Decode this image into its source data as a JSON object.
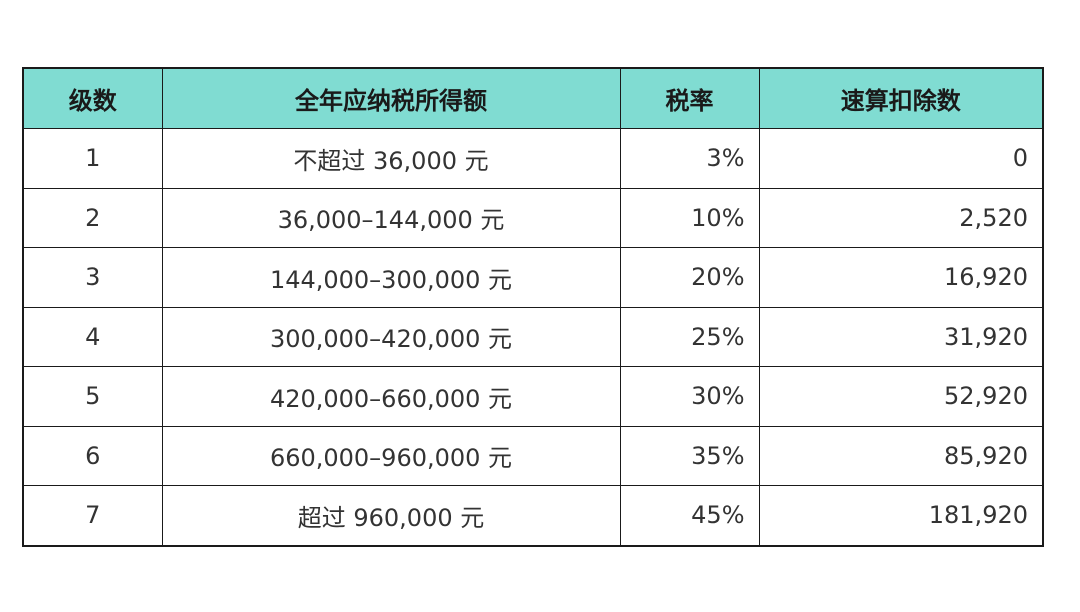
{
  "table": {
    "headers": [
      "级数",
      "全年应纳税所得额",
      "税率",
      "速算扣除数"
    ],
    "rows": [
      {
        "level": "1",
        "income": "不超过 36,000 元",
        "rate": "3%",
        "deduction": "0"
      },
      {
        "level": "2",
        "income": "36,000–144,000 元",
        "rate": "10%",
        "deduction": "2,520"
      },
      {
        "level": "3",
        "income": "144,000–300,000 元",
        "rate": "20%",
        "deduction": "16,920"
      },
      {
        "level": "4",
        "income": "300,000–420,000 元",
        "rate": "25%",
        "deduction": "31,920"
      },
      {
        "level": "5",
        "income": "420,000–660,000 元",
        "rate": "30%",
        "deduction": "52,920"
      },
      {
        "level": "6",
        "income": "660,000–960,000 元",
        "rate": "35%",
        "deduction": "85,920"
      },
      {
        "level": "7",
        "income": "超过 960,000 元",
        "rate": "45%",
        "deduction": "181,920"
      }
    ]
  },
  "colors": {
    "header_background": "#80dcd2",
    "border": "#1a1a1a"
  }
}
